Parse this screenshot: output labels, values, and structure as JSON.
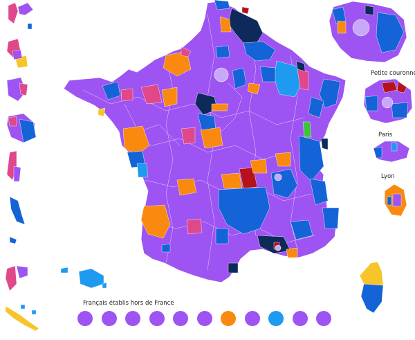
{
  "colors": {
    "purple": "#9d54f2",
    "orange": "#f98a0f",
    "blue": "#1464d8",
    "lightblue": "#1e9af0",
    "navy": "#0e2a5a",
    "pink": "#e0488a",
    "red": "#b5121b",
    "yellow": "#f7c52a",
    "green": "#3dc43b",
    "border": "#ffffff"
  },
  "labels": {
    "petite_couronne": "Petite couronne",
    "paris": "Paris",
    "lyon": "Lyon",
    "abroad": "Français établis hors de France"
  },
  "abroad_constituencies": [
    "purple",
    "purple",
    "purple",
    "purple",
    "purple",
    "purple",
    "orange",
    "purple",
    "lightblue",
    "purple",
    "purple"
  ]
}
